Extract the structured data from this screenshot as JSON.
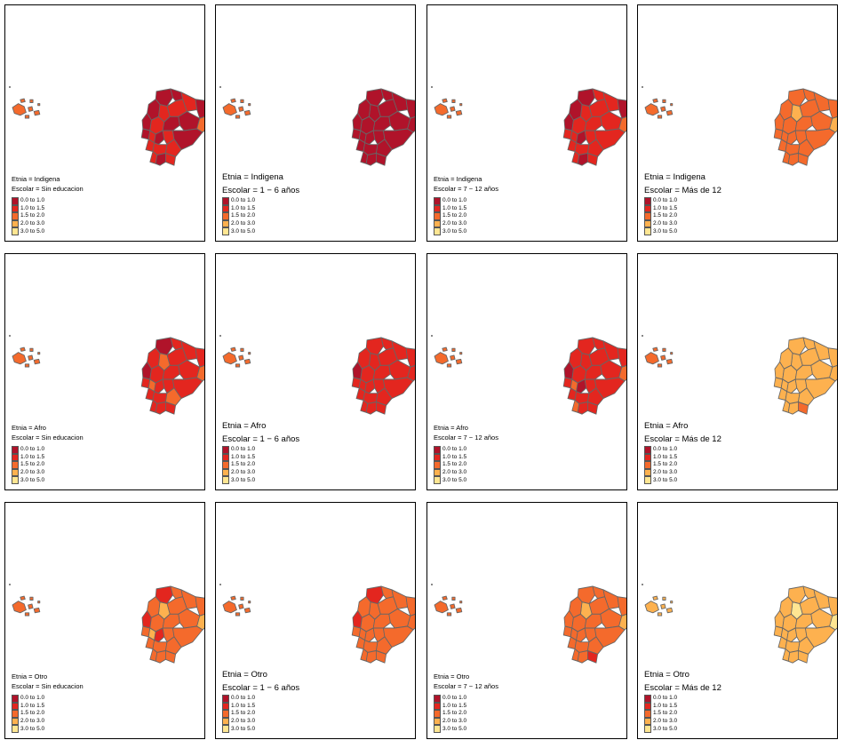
{
  "legend": {
    "labels": [
      "0.0 to 1.0",
      "1.0 to 1.5",
      "1.5 to 2.0",
      "2.0 to 3.0",
      "3.0 to 5.0"
    ],
    "colors": [
      "#b0132a",
      "#e3261f",
      "#f46a2c",
      "#fdb14f",
      "#ffe692"
    ]
  },
  "border_color": "#666666",
  "panels": [
    {
      "etnia": "Etnia = Indigena",
      "escolar": "Escolar = Sin educacion",
      "levels": [
        0,
        0,
        1,
        0,
        1,
        1,
        0,
        0,
        1,
        0,
        0,
        2,
        0,
        1,
        0,
        1,
        0,
        1,
        1,
        1,
        1,
        0,
        1
      ],
      "galapagos_level": 2
    },
    {
      "etnia": "Etnia = Indigena",
      "escolar": "Escolar = 1 − 6 años",
      "levels": [
        0,
        0,
        0,
        0,
        0,
        0,
        0,
        0,
        0,
        0,
        0,
        0,
        0,
        0,
        0,
        0,
        0,
        0,
        0,
        0,
        0,
        0,
        0
      ],
      "galapagos_level": 2
    },
    {
      "etnia": "Etnia = Indigena",
      "escolar": "Escolar = 7 − 12 años",
      "levels": [
        0,
        1,
        1,
        0,
        1,
        1,
        0,
        0,
        1,
        1,
        1,
        2,
        1,
        1,
        0,
        1,
        1,
        1,
        1,
        1,
        1,
        0,
        1
      ],
      "galapagos_level": 2
    },
    {
      "etnia": "Etnia = Indigena",
      "escolar": "Escolar = Más de 12",
      "levels": [
        2,
        2,
        2,
        2,
        2,
        3,
        2,
        2,
        2,
        2,
        2,
        3,
        2,
        2,
        2,
        2,
        2,
        2,
        2,
        2,
        2,
        2,
        2
      ],
      "galapagos_level": 2
    },
    {
      "etnia": "Etnia = Afro",
      "escolar": "Escolar = Sin educacion",
      "levels": [
        0,
        1,
        1,
        1,
        1,
        2,
        1,
        0,
        1,
        1,
        1,
        2,
        1,
        2,
        1,
        1,
        1,
        1,
        1,
        2,
        1,
        1,
        1
      ],
      "galapagos_level": 2
    },
    {
      "etnia": "Etnia = Afro",
      "escolar": "Escolar = 1 − 6 años",
      "levels": [
        1,
        1,
        1,
        1,
        1,
        1,
        1,
        0,
        1,
        1,
        1,
        1,
        1,
        1,
        1,
        1,
        1,
        1,
        1,
        1,
        1,
        1,
        1
      ],
      "galapagos_level": 2
    },
    {
      "etnia": "Etnia = Afro",
      "escolar": "Escolar = 7 − 12 años",
      "levels": [
        1,
        1,
        1,
        1,
        1,
        1,
        1,
        0,
        1,
        1,
        1,
        2,
        1,
        2,
        0,
        1,
        1,
        1,
        1,
        1,
        2,
        1,
        1
      ],
      "galapagos_level": 2
    },
    {
      "etnia": "Etnia = Afro",
      "escolar": "Escolar = Más de 12",
      "levels": [
        3,
        3,
        3,
        3,
        3,
        3,
        3,
        3,
        3,
        3,
        3,
        3,
        3,
        3,
        3,
        3,
        3,
        3,
        3,
        3,
        3,
        3,
        2
      ],
      "galapagos_level": 2
    },
    {
      "etnia": "Etnia = Otro",
      "escolar": "Escolar = Sin educacion",
      "levels": [
        1,
        2,
        2,
        2,
        2,
        3,
        2,
        1,
        2,
        2,
        2,
        3,
        2,
        3,
        1,
        2,
        2,
        2,
        2,
        2,
        2,
        2,
        2
      ],
      "galapagos_level": 2
    },
    {
      "etnia": "Etnia = Otro",
      "escolar": "Escolar = 1 − 6 años",
      "levels": [
        1,
        2,
        2,
        2,
        2,
        2,
        2,
        1,
        2,
        2,
        2,
        2,
        2,
        2,
        2,
        2,
        2,
        2,
        2,
        2,
        2,
        2,
        2
      ],
      "galapagos_level": 2
    },
    {
      "etnia": "Etnia = Otro",
      "escolar": "Escolar = 7 − 12 años",
      "levels": [
        2,
        2,
        2,
        2,
        2,
        3,
        2,
        2,
        2,
        2,
        2,
        3,
        2,
        2,
        2,
        2,
        2,
        2,
        2,
        2,
        2,
        2,
        1
      ],
      "galapagos_level": 2
    },
    {
      "etnia": "Etnia = Otro",
      "escolar": "Escolar = Más de 12",
      "levels": [
        3,
        3,
        3,
        3,
        3,
        4,
        3,
        3,
        3,
        3,
        3,
        4,
        3,
        3,
        3,
        3,
        3,
        3,
        3,
        3,
        3,
        3,
        3
      ],
      "galapagos_level": 3
    }
  ]
}
